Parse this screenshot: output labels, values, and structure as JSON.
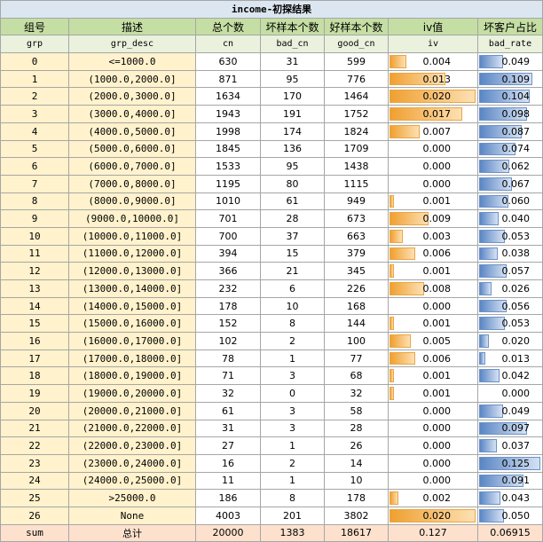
{
  "title": "income-初探结果",
  "headers_cn": [
    "组号",
    "描述",
    "总个数",
    "坏样本个数",
    "好样本个数",
    "iv值",
    "坏客户占比"
  ],
  "headers_code": [
    "grp",
    "grp_desc",
    "cn",
    "bad_cn",
    "good_cn",
    "iv",
    "bad_rate"
  ],
  "rows": [
    {
      "grp": "0",
      "desc": "<=1000.0",
      "cn": "630",
      "bad": "31",
      "good": "599",
      "iv": "0.004",
      "br": "0.049"
    },
    {
      "grp": "1",
      "desc": "(1000.0,2000.0]",
      "cn": "871",
      "bad": "95",
      "good": "776",
      "iv": "0.013",
      "br": "0.109"
    },
    {
      "grp": "2",
      "desc": "(2000.0,3000.0]",
      "cn": "1634",
      "bad": "170",
      "good": "1464",
      "iv": "0.020",
      "br": "0.104"
    },
    {
      "grp": "3",
      "desc": "(3000.0,4000.0]",
      "cn": "1943",
      "bad": "191",
      "good": "1752",
      "iv": "0.017",
      "br": "0.098"
    },
    {
      "grp": "4",
      "desc": "(4000.0,5000.0]",
      "cn": "1998",
      "bad": "174",
      "good": "1824",
      "iv": "0.007",
      "br": "0.087"
    },
    {
      "grp": "5",
      "desc": "(5000.0,6000.0]",
      "cn": "1845",
      "bad": "136",
      "good": "1709",
      "iv": "0.000",
      "br": "0.074"
    },
    {
      "grp": "6",
      "desc": "(6000.0,7000.0]",
      "cn": "1533",
      "bad": "95",
      "good": "1438",
      "iv": "0.000",
      "br": "0.062"
    },
    {
      "grp": "7",
      "desc": "(7000.0,8000.0]",
      "cn": "1195",
      "bad": "80",
      "good": "1115",
      "iv": "0.000",
      "br": "0.067"
    },
    {
      "grp": "8",
      "desc": "(8000.0,9000.0]",
      "cn": "1010",
      "bad": "61",
      "good": "949",
      "iv": "0.001",
      "br": "0.060"
    },
    {
      "grp": "9",
      "desc": "(9000.0,10000.0]",
      "cn": "701",
      "bad": "28",
      "good": "673",
      "iv": "0.009",
      "br": "0.040"
    },
    {
      "grp": "10",
      "desc": "(10000.0,11000.0]",
      "cn": "700",
      "bad": "37",
      "good": "663",
      "iv": "0.003",
      "br": "0.053"
    },
    {
      "grp": "11",
      "desc": "(11000.0,12000.0]",
      "cn": "394",
      "bad": "15",
      "good": "379",
      "iv": "0.006",
      "br": "0.038"
    },
    {
      "grp": "12",
      "desc": "(12000.0,13000.0]",
      "cn": "366",
      "bad": "21",
      "good": "345",
      "iv": "0.001",
      "br": "0.057"
    },
    {
      "grp": "13",
      "desc": "(13000.0,14000.0]",
      "cn": "232",
      "bad": "6",
      "good": "226",
      "iv": "0.008",
      "br": "0.026"
    },
    {
      "grp": "14",
      "desc": "(14000.0,15000.0]",
      "cn": "178",
      "bad": "10",
      "good": "168",
      "iv": "0.000",
      "br": "0.056"
    },
    {
      "grp": "15",
      "desc": "(15000.0,16000.0]",
      "cn": "152",
      "bad": "8",
      "good": "144",
      "iv": "0.001",
      "br": "0.053"
    },
    {
      "grp": "16",
      "desc": "(16000.0,17000.0]",
      "cn": "102",
      "bad": "2",
      "good": "100",
      "iv": "0.005",
      "br": "0.020"
    },
    {
      "grp": "17",
      "desc": "(17000.0,18000.0]",
      "cn": "78",
      "bad": "1",
      "good": "77",
      "iv": "0.006",
      "br": "0.013"
    },
    {
      "grp": "18",
      "desc": "(18000.0,19000.0]",
      "cn": "71",
      "bad": "3",
      "good": "68",
      "iv": "0.001",
      "br": "0.042"
    },
    {
      "grp": "19",
      "desc": "(19000.0,20000.0]",
      "cn": "32",
      "bad": "0",
      "good": "32",
      "iv": "0.001",
      "br": "0.000"
    },
    {
      "grp": "20",
      "desc": "(20000.0,21000.0]",
      "cn": "61",
      "bad": "3",
      "good": "58",
      "iv": "0.000",
      "br": "0.049"
    },
    {
      "grp": "21",
      "desc": "(21000.0,22000.0]",
      "cn": "31",
      "bad": "3",
      "good": "28",
      "iv": "0.000",
      "br": "0.097"
    },
    {
      "grp": "22",
      "desc": "(22000.0,23000.0]",
      "cn": "27",
      "bad": "1",
      "good": "26",
      "iv": "0.000",
      "br": "0.037"
    },
    {
      "grp": "23",
      "desc": "(23000.0,24000.0]",
      "cn": "16",
      "bad": "2",
      "good": "14",
      "iv": "0.000",
      "br": "0.125"
    },
    {
      "grp": "24",
      "desc": "(24000.0,25000.0]",
      "cn": "11",
      "bad": "1",
      "good": "10",
      "iv": "0.000",
      "br": "0.091"
    },
    {
      "grp": "25",
      "desc": ">25000.0",
      "cn": "186",
      "bad": "8",
      "good": "178",
      "iv": "0.002",
      "br": "0.043"
    },
    {
      "grp": "26",
      "desc": "None",
      "cn": "4003",
      "bad": "201",
      "good": "3802",
      "iv": "0.020",
      "br": "0.050"
    }
  ],
  "sum": {
    "label": "sum",
    "desc": "总计",
    "cn": "20000",
    "bad": "1383",
    "good": "18617",
    "iv": "0.127",
    "br": "0.06915"
  },
  "colors": {
    "iv_bar": "#f0a030",
    "bad_rate_bar": "#5a86c4",
    "group_cell": "#fff2cc",
    "header": "#c4dea3",
    "title": "#dbe6f1",
    "sum_row": "#fde1cd"
  }
}
